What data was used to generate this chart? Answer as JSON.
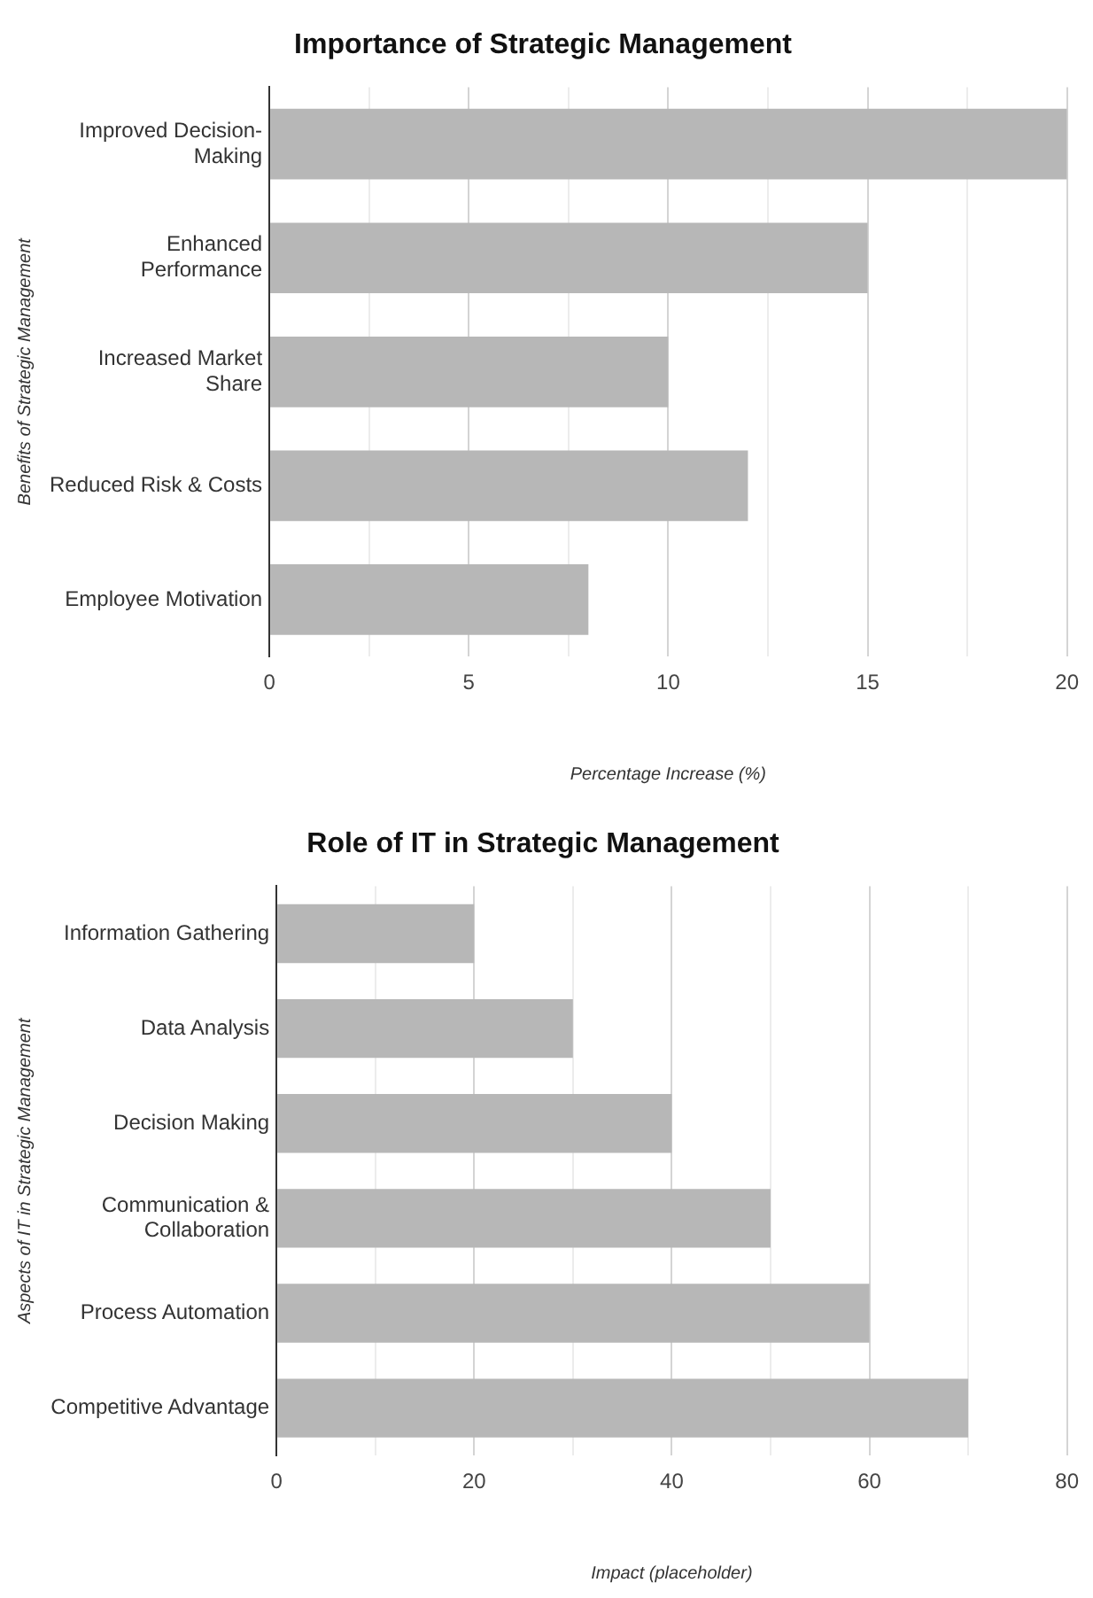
{
  "chart_data": [
    {
      "type": "bar",
      "orientation": "horizontal",
      "title": "Importance of Strategic Management",
      "xlabel": "Percentage Increase (%)",
      "ylabel": "Benefits of Strategic Management",
      "categories": [
        "Improved Decision-Making",
        "Enhanced Performance",
        "Increased Market Share",
        "Reduced Risk & Costs",
        "Employee Motivation"
      ],
      "values": [
        20,
        15,
        10,
        12,
        8
      ],
      "color": "#b7b7b7",
      "xlim": [
        0,
        20
      ],
      "xticks": [
        0,
        {
          "value": 2.5,
          "label": null
        },
        5,
        {
          "value": 7.5,
          "label": null
        },
        10,
        {
          "value": 12.5,
          "label": null
        },
        15,
        {
          "value": 17.5,
          "label": null
        },
        20
      ],
      "grid": "x",
      "legend": false
    },
    {
      "type": "bar",
      "orientation": "horizontal",
      "title": "Role of IT in Strategic Management",
      "xlabel": "Impact (placeholder)",
      "ylabel": "Aspects of IT in Strategic Management",
      "categories": [
        "Information Gathering",
        "Data Analysis",
        "Decision Making",
        "Communication & Collaboration",
        "Process Automation",
        "Competitive Advantage"
      ],
      "values": [
        20,
        30,
        40,
        50,
        60,
        70
      ],
      "color": "#b7b7b7",
      "xlim": [
        0,
        80
      ],
      "xticks": [
        0,
        {
          "value": 10,
          "label": null
        },
        20,
        {
          "value": 30,
          "label": null
        },
        40,
        {
          "value": 50,
          "label": null
        },
        60,
        {
          "value": 70,
          "label": null
        },
        80
      ],
      "grid": "x",
      "legend": false
    }
  ]
}
